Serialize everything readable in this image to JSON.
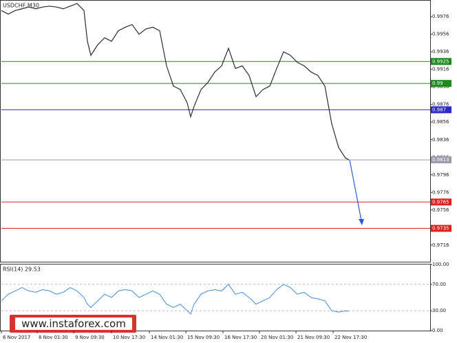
{
  "chart_data": {
    "type": "line",
    "title": "USDCHF,M30",
    "x": [
      0,
      1,
      2,
      3,
      4,
      5,
      6,
      7,
      8,
      9,
      10,
      11,
      12,
      12.5,
      13,
      14,
      15,
      16,
      17,
      18,
      19,
      20,
      21,
      22,
      23,
      24,
      25,
      26,
      27,
      27.5,
      28,
      29,
      30,
      31,
      32,
      33,
      34,
      35,
      36,
      37,
      38,
      39,
      40,
      41,
      42,
      43,
      44,
      45,
      46,
      47,
      48,
      49,
      50,
      50.5
    ],
    "xlim": [
      0,
      62.3
    ],
    "xticks": [
      {
        "value": 0,
        "label": "6 Nov 2017"
      },
      {
        "value": 5.2,
        "label": "8 Nov 01:30"
      },
      {
        "value": 10.5,
        "label": "9 Nov 09:30"
      },
      {
        "value": 16,
        "label": "10 Nov 17:30"
      },
      {
        "value": 21.5,
        "label": "14 Nov 01:30"
      },
      {
        "value": 26.8,
        "label": "15 Nov 09:30"
      },
      {
        "value": 32.2,
        "label": "16 Nov 17:30"
      },
      {
        "value": 37.5,
        "label": "20 Nov 01:30"
      },
      {
        "value": 42.8,
        "label": "21 Nov 09:30"
      },
      {
        "value": 48.2,
        "label": "22 Nov 17:30"
      }
    ],
    "series": [
      {
        "color": "#2b2b2b",
        "values": [
          0.9983,
          0.9979,
          0.9983,
          0.9985,
          0.9987,
          0.9985,
          0.9987,
          0.9988,
          0.9987,
          0.9985,
          0.9988,
          0.9991,
          0.9983,
          0.9948,
          0.9932,
          0.9944,
          0.9952,
          0.9948,
          0.996,
          0.9964,
          0.9967,
          0.9956,
          0.9962,
          0.9964,
          0.996,
          0.992,
          0.9897,
          0.9893,
          0.9878,
          0.9862,
          0.9874,
          0.9893,
          0.9901,
          0.9913,
          0.992,
          0.994,
          0.9917,
          0.992,
          0.9909,
          0.9885,
          0.9893,
          0.9897,
          0.9917,
          0.9936,
          0.9932,
          0.9924,
          0.992,
          0.9913,
          0.9909,
          0.9897,
          0.9854,
          0.9827,
          0.9815,
          0.9813
        ]
      }
    ],
    "ylim": [
      0.9697,
      0.9995
    ],
    "yticks": [
      0.9976,
      0.9956,
      0.9936,
      0.9916,
      0.9896,
      0.9876,
      0.9856,
      0.9836,
      0.9816,
      0.9796,
      0.9776,
      0.9756,
      0.9736,
      0.9716
    ],
    "levels": [
      {
        "value": 0.9925,
        "color": "#1e8a1e"
      },
      {
        "value": 0.99,
        "color": "#1e8a1e"
      },
      {
        "value": 0.987,
        "color": "#2a2ad0"
      },
      {
        "value": 0.9813,
        "color": "#9a9aaa"
      },
      {
        "value": 0.9765,
        "color": "#e02020"
      },
      {
        "value": 0.9735,
        "color": "#e02020"
      }
    ],
    "rsi": {
      "label": "RSI(14) 29.53",
      "color": "#3b8fe0",
      "values": [
        45,
        55,
        60,
        65,
        60,
        58,
        62,
        60,
        55,
        58,
        65,
        60,
        50,
        40,
        35,
        45,
        55,
        50,
        60,
        62,
        60,
        50,
        55,
        60,
        55,
        40,
        35,
        40,
        30,
        25,
        40,
        55,
        60,
        62,
        60,
        70,
        55,
        58,
        50,
        40,
        45,
        50,
        62,
        70,
        65,
        55,
        58,
        50,
        48,
        45,
        30,
        28,
        30,
        29.53
      ],
      "ylim": [
        0,
        100
      ],
      "yticks": [
        {
          "value": 100,
          "label": "100.00"
        },
        {
          "value": 70,
          "label": "70.00"
        },
        {
          "value": 30,
          "label": "30.00"
        },
        {
          "value": 0,
          "label": "0.00"
        }
      ]
    },
    "watermark": "www.instaforex.com"
  }
}
